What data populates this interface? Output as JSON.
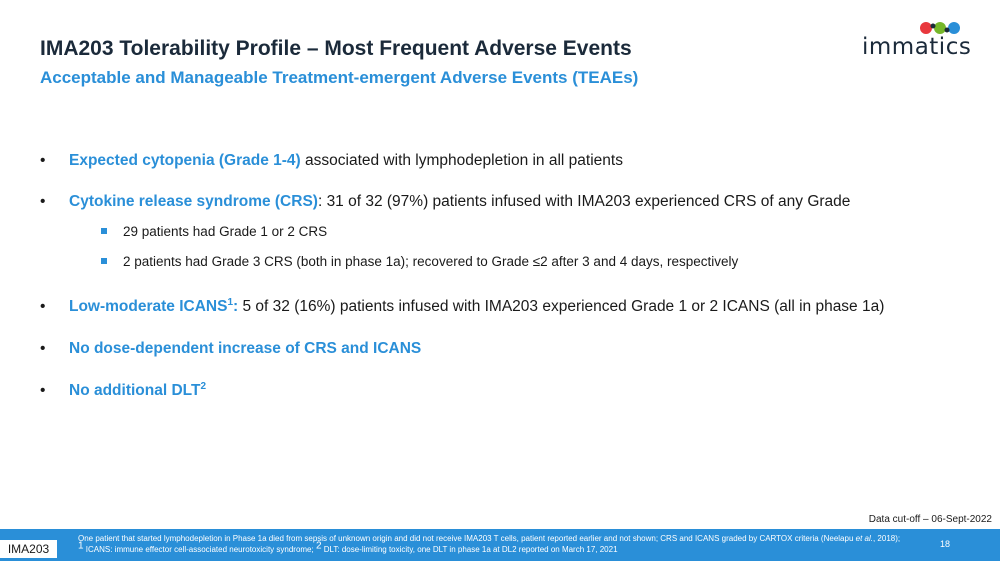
{
  "header": {
    "title": "IMA203 Tolerability Profile – Most Frequent Adverse Events",
    "subtitle": "Acceptable and Manageable Treatment-emergent Adverse Events (TEAEs)",
    "logo_text": "immatics"
  },
  "bullets": [
    {
      "highlight": "Expected cytopenia (Grade 1-4)",
      "text": " associated with lymphodepletion in all patients"
    },
    {
      "highlight": "Cytokine release syndrome (CRS)",
      "text": ": 31 of 32 (97%) patients infused with IMA203 experienced CRS of any Grade"
    },
    {
      "highlight": "Low-moderate ICANS",
      "sup": "1",
      "highlight_suffix": ":",
      "text": " 5 of 32 (16%) patients infused with IMA203 experienced Grade 1 or 2 ICANS (all in phase 1a)"
    },
    {
      "highlight": "No dose-dependent increase of CRS and ICANS"
    },
    {
      "highlight": "No additional DLT",
      "sup": "2"
    }
  ],
  "sub_bullets": [
    "29 patients had Grade 1 or 2 CRS",
    "2  patients had Grade 3 CRS (both in phase 1a); recovered to Grade ≤2 after 3 and 4 days, respectively"
  ],
  "data_cutoff": "Data cut-off – 06-Sept-2022",
  "footer": {
    "tag": "IMA203",
    "note1_a": "One patient that started lymphodepletion in Phase 1a died from sepsis of unknown origin and did not receive IMA203 T cells, patient reported earlier and not shown; CRS and ICANS graded by CARTOX criteria (Neelapu ",
    "note1_italic": "et al.",
    "note1_b": ", 2018);",
    "note2_sup1": "1",
    "note2_a": " ICANS: immune effector cell-associated neurotoxicity syndrome; ",
    "note2_sup2": "2",
    "note2_b": " DLT: dose-limiting toxicity, one DLT in phase 1a at DL2 reported on March 17, 2021",
    "page_number": "18"
  },
  "colors": {
    "accent": "#2a8fd8",
    "title": "#1b2a3a"
  }
}
